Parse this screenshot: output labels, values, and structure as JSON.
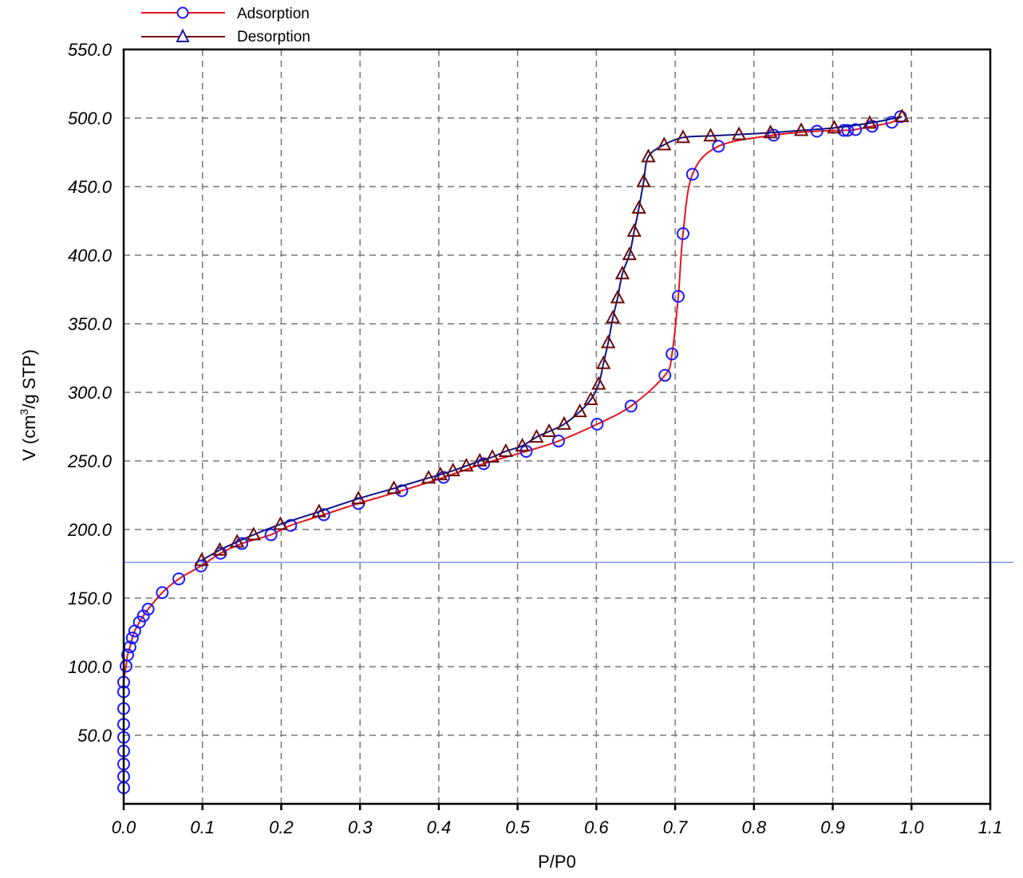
{
  "chart_data": {
    "type": "scatter",
    "title": "",
    "xlabel": "P/P0",
    "ylabel": "V (cm³/g STP)",
    "xlim": [
      0.0,
      1.1
    ],
    "ylim": [
      0.0,
      550.0
    ],
    "x_ticks": [
      "0.0",
      "0.1",
      "0.2",
      "0.3",
      "0.4",
      "0.5",
      "0.6",
      "0.7",
      "0.8",
      "0.9",
      "1.0",
      "1.1"
    ],
    "y_ticks": [
      "50.0",
      "100.0",
      "150.0",
      "200.0",
      "250.0",
      "300.0",
      "350.0",
      "400.0",
      "450.0",
      "500.0",
      "550.0"
    ],
    "grid": true,
    "legend_position": "top-left, above plot",
    "reference_line": {
      "orientation": "horizontal",
      "y": 176,
      "color": "#6f7fff"
    },
    "series": [
      {
        "name": "Adsorption",
        "line_color": "#e8141c",
        "marker": "circle",
        "marker_color": "#1a1aff",
        "x": [
          0.0,
          0.0,
          0.0,
          0.0,
          0.0,
          0.0,
          0.0,
          0.0,
          0.0,
          0.003,
          0.005,
          0.008,
          0.011,
          0.014,
          0.02,
          0.025,
          0.031,
          0.049,
          0.07,
          0.098,
          0.123,
          0.15,
          0.187,
          0.212,
          0.254,
          0.298,
          0.353,
          0.406,
          0.457,
          0.511,
          0.552,
          0.601,
          0.644,
          0.687,
          0.696,
          0.704,
          0.71,
          0.722,
          0.755,
          0.825,
          0.88,
          0.914,
          0.919,
          0.929,
          0.95,
          0.975,
          0.986
        ],
        "y": [
          11.7,
          19.9,
          29.0,
          38.5,
          48.5,
          58.0,
          69.5,
          81.7,
          88.7,
          100.4,
          108.6,
          114.4,
          120.9,
          126.0,
          132.5,
          137.0,
          141.9,
          154.0,
          164.0,
          173.4,
          182.7,
          189.8,
          196.2,
          203.0,
          210.8,
          219.0,
          228.3,
          238.0,
          248.0,
          257.0,
          264.5,
          276.8,
          290.0,
          312.4,
          328.0,
          370.0,
          415.7,
          459.0,
          479.4,
          487.5,
          490.4,
          491.0,
          491.0,
          491.6,
          494.0,
          496.9,
          501.0
        ]
      },
      {
        "name": "Desorption",
        "line_color": "#0a1488",
        "marker": "triangle",
        "marker_color": "#6b0a0a",
        "legend_line_color": "#7a0e0e",
        "legend_marker_color": "#1a1a99",
        "x": [
          0.988,
          0.947,
          0.902,
          0.86,
          0.821,
          0.781,
          0.745,
          0.71,
          0.686,
          0.666,
          0.66,
          0.654,
          0.648,
          0.642,
          0.633,
          0.627,
          0.621,
          0.615,
          0.609,
          0.603,
          0.593,
          0.579,
          0.559,
          0.54,
          0.524,
          0.506,
          0.485,
          0.468,
          0.452,
          0.435,
          0.418,
          0.402,
          0.387,
          0.343,
          0.298,
          0.248,
          0.199,
          0.165,
          0.144,
          0.122,
          0.099
        ],
        "y": [
          501.0,
          496.3,
          492.8,
          491.0,
          489.3,
          488.0,
          487.0,
          485.8,
          480.5,
          471.8,
          453.7,
          434.4,
          417.5,
          400.5,
          386.5,
          369.0,
          354.4,
          336.3,
          321.1,
          306.0,
          294.8,
          286.0,
          276.8,
          271.5,
          267.4,
          261.0,
          257.0,
          252.8,
          250.0,
          246.4,
          242.9,
          240.0,
          237.6,
          230.0,
          222.5,
          213.0,
          203.8,
          196.2,
          191.0,
          185.0,
          177.5
        ]
      }
    ]
  },
  "legend": {
    "items": [
      {
        "label": "Adsorption"
      },
      {
        "label": "Desorption"
      }
    ]
  },
  "axes": {
    "x_title": "P/P0",
    "y_title_main": "V (cm",
    "y_title_sup": "3",
    "y_title_rest": "/g STP)"
  }
}
